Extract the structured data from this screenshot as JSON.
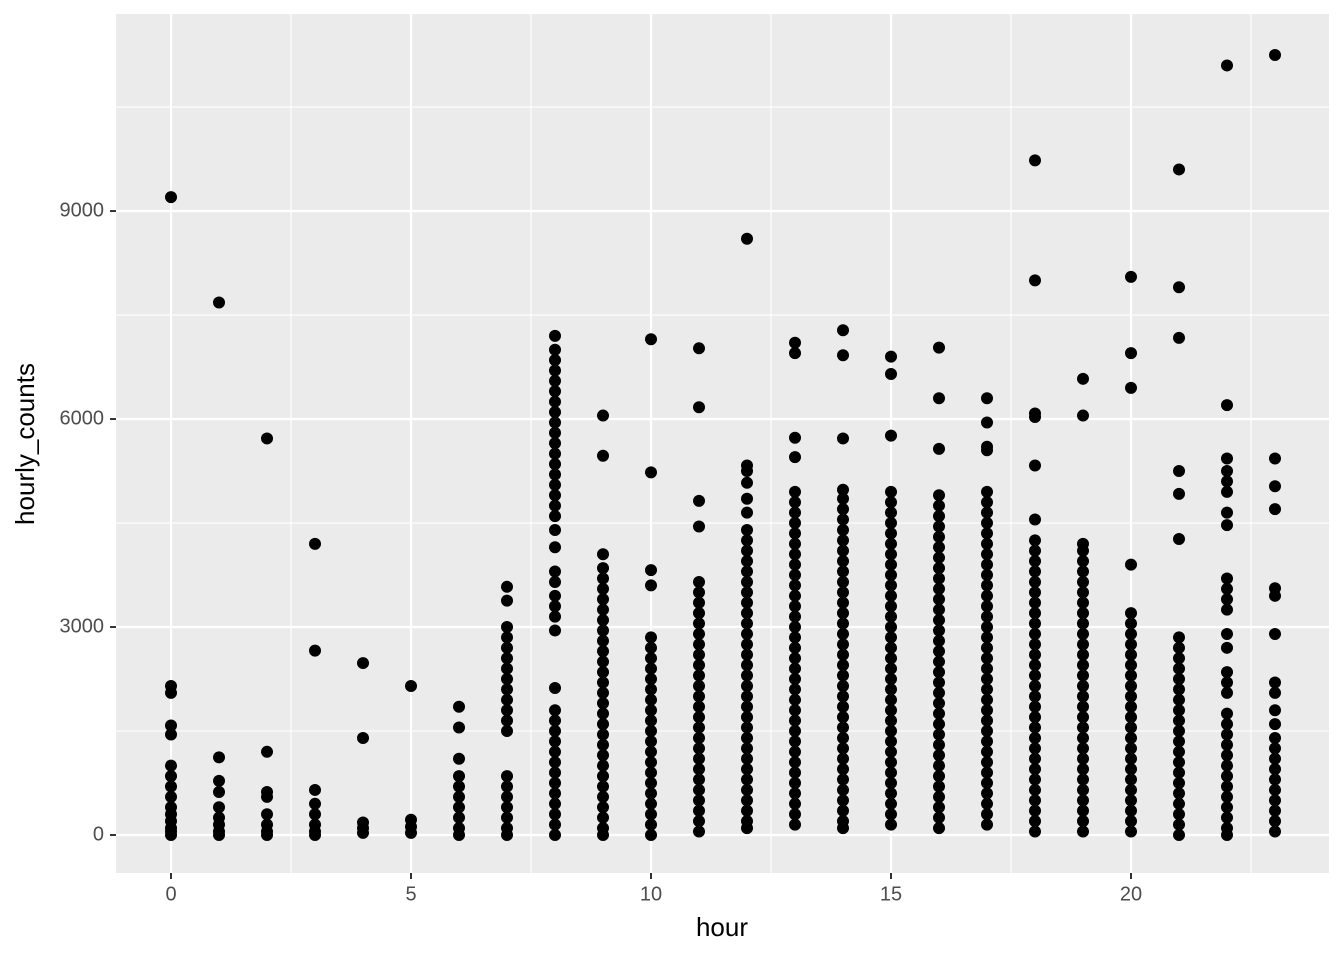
{
  "chart_data": {
    "type": "scatter",
    "x_label": "hour",
    "y_label": "hourly_counts",
    "color": "#000000",
    "background": "#ebebeb",
    "grid": true,
    "xlim": [
      -1.146,
      24.125
    ],
    "ylim": [
      -548,
      11842
    ],
    "xticks": [
      0,
      5,
      10,
      15,
      20
    ],
    "yticks": [
      0,
      3000,
      6000,
      9000
    ],
    "groups": [
      {
        "x": 0,
        "values": [
          9200,
          2150,
          2050,
          1580,
          1450,
          1000,
          850,
          700,
          550,
          400,
          300,
          200,
          100,
          50,
          0
        ]
      },
      {
        "x": 1,
        "values": [
          7680,
          1120,
          780,
          620,
          400,
          250,
          150,
          50,
          0
        ]
      },
      {
        "x": 2,
        "values": [
          5720,
          1200,
          620,
          550,
          300,
          150,
          50,
          0
        ]
      },
      {
        "x": 3,
        "values": [
          4200,
          2660,
          650,
          450,
          300,
          150,
          50,
          0
        ]
      },
      {
        "x": 4,
        "values": [
          2480,
          1400,
          180,
          100,
          30
        ]
      },
      {
        "x": 5,
        "values": [
          2150,
          220,
          120,
          30
        ]
      },
      {
        "x": 6,
        "values": [
          1850,
          1550,
          1100,
          850,
          700,
          550,
          400,
          250,
          100,
          0
        ]
      },
      {
        "x": 7,
        "values": [
          3580,
          3380,
          3000,
          2850,
          2700,
          2550,
          2400,
          2250,
          2100,
          1950,
          1800,
          1650,
          1500,
          850,
          700,
          550,
          400,
          250,
          100,
          0
        ]
      },
      {
        "x": 8,
        "values": [
          7200,
          7000,
          6850,
          6700,
          6550,
          6400,
          6250,
          6100,
          5950,
          5800,
          5650,
          5500,
          5350,
          5200,
          5050,
          4900,
          4750,
          4600,
          4400,
          4150,
          3800,
          3650,
          3450,
          3300,
          3150,
          2950,
          2120,
          1800,
          1650,
          1500,
          1350,
          1200,
          1050,
          900,
          750,
          600,
          450,
          300,
          150,
          0
        ]
      },
      {
        "x": 9,
        "values": [
          6050,
          5470,
          4050,
          3850,
          3700,
          3550,
          3400,
          3250,
          3100,
          2950,
          2800,
          2650,
          2500,
          2350,
          2200,
          2050,
          1900,
          1750,
          1600,
          1450,
          1300,
          1150,
          1000,
          850,
          700,
          550,
          400,
          250,
          100,
          0
        ]
      },
      {
        "x": 10,
        "values": [
          7150,
          5230,
          3820,
          3600,
          2850,
          2700,
          2550,
          2400,
          2250,
          2100,
          1950,
          1800,
          1650,
          1500,
          1350,
          1200,
          1050,
          900,
          750,
          600,
          450,
          300,
          150,
          0
        ]
      },
      {
        "x": 11,
        "values": [
          7020,
          6170,
          4820,
          4450,
          3650,
          3500,
          3350,
          3200,
          3050,
          2900,
          2750,
          2600,
          2450,
          2300,
          2150,
          2000,
          1850,
          1700,
          1550,
          1400,
          1250,
          1100,
          950,
          800,
          650,
          500,
          350,
          200,
          50
        ]
      },
      {
        "x": 12,
        "values": [
          8600,
          5330,
          5250,
          5080,
          4850,
          4650,
          4400,
          4250,
          4100,
          3950,
          3800,
          3650,
          3500,
          3350,
          3200,
          3050,
          2900,
          2750,
          2600,
          2450,
          2300,
          2150,
          2000,
          1850,
          1700,
          1550,
          1400,
          1250,
          1100,
          950,
          800,
          650,
          500,
          350,
          200,
          100
        ]
      },
      {
        "x": 13,
        "values": [
          7100,
          6950,
          5730,
          5450,
          4950,
          4800,
          4650,
          4500,
          4350,
          4200,
          4050,
          3900,
          3750,
          3600,
          3450,
          3300,
          3150,
          3000,
          2850,
          2700,
          2550,
          2400,
          2250,
          2100,
          1950,
          1800,
          1650,
          1500,
          1350,
          1200,
          1050,
          900,
          750,
          600,
          450,
          300,
          150
        ]
      },
      {
        "x": 14,
        "values": [
          7280,
          6920,
          5720,
          4980,
          4850,
          4700,
          4550,
          4400,
          4250,
          4100,
          3950,
          3800,
          3650,
          3500,
          3350,
          3200,
          3050,
          2900,
          2750,
          2600,
          2450,
          2300,
          2150,
          2000,
          1850,
          1700,
          1550,
          1400,
          1250,
          1100,
          950,
          800,
          650,
          500,
          350,
          200,
          100
        ]
      },
      {
        "x": 15,
        "values": [
          6900,
          6650,
          5760,
          4950,
          4800,
          4650,
          4500,
          4350,
          4200,
          4050,
          3900,
          3750,
          3600,
          3450,
          3300,
          3150,
          3000,
          2850,
          2700,
          2550,
          2400,
          2250,
          2100,
          1950,
          1800,
          1650,
          1500,
          1350,
          1200,
          1050,
          900,
          750,
          600,
          450,
          300,
          150
        ]
      },
      {
        "x": 16,
        "values": [
          7030,
          6300,
          5570,
          4900,
          4750,
          4600,
          4450,
          4300,
          4150,
          4000,
          3850,
          3700,
          3550,
          3400,
          3250,
          3100,
          2950,
          2800,
          2650,
          2500,
          2350,
          2200,
          2050,
          1900,
          1750,
          1600,
          1450,
          1300,
          1150,
          1000,
          850,
          700,
          550,
          400,
          250,
          100
        ]
      },
      {
        "x": 17,
        "values": [
          6300,
          5950,
          5600,
          5550,
          4950,
          4800,
          4650,
          4500,
          4350,
          4200,
          4050,
          3900,
          3750,
          3600,
          3450,
          3300,
          3150,
          3000,
          2850,
          2700,
          2550,
          2400,
          2250,
          2100,
          1950,
          1800,
          1650,
          1500,
          1350,
          1200,
          1050,
          900,
          750,
          600,
          450,
          300,
          150
        ]
      },
      {
        "x": 18,
        "values": [
          9730,
          8000,
          6080,
          6030,
          5330,
          4550,
          4250,
          4100,
          3950,
          3800,
          3650,
          3500,
          3350,
          3200,
          3050,
          2900,
          2750,
          2600,
          2450,
          2300,
          2150,
          2000,
          1850,
          1700,
          1550,
          1400,
          1250,
          1100,
          950,
          800,
          650,
          500,
          350,
          200,
          50
        ]
      },
      {
        "x": 19,
        "values": [
          6580,
          6050,
          4200,
          4100,
          3950,
          3800,
          3650,
          3500,
          3350,
          3200,
          3050,
          2900,
          2750,
          2600,
          2450,
          2300,
          2150,
          2000,
          1850,
          1700,
          1550,
          1400,
          1250,
          1100,
          950,
          800,
          650,
          500,
          350,
          200,
          50
        ]
      },
      {
        "x": 20,
        "values": [
          8050,
          6950,
          6450,
          3900,
          3200,
          3050,
          2900,
          2750,
          2600,
          2450,
          2300,
          2150,
          2000,
          1850,
          1700,
          1550,
          1400,
          1250,
          1100,
          950,
          800,
          650,
          500,
          350,
          200,
          50
        ]
      },
      {
        "x": 21,
        "values": [
          9600,
          7900,
          7170,
          5250,
          4920,
          4270,
          2850,
          2700,
          2550,
          2400,
          2250,
          2100,
          1950,
          1800,
          1650,
          1500,
          1350,
          1200,
          1050,
          900,
          750,
          600,
          450,
          300,
          150,
          0
        ]
      },
      {
        "x": 22,
        "values": [
          11100,
          6200,
          5430,
          5250,
          5100,
          4950,
          4650,
          4470,
          3700,
          3550,
          3400,
          3250,
          2900,
          2700,
          2350,
          2200,
          2050,
          1750,
          1600,
          1450,
          1300,
          1150,
          1000,
          850,
          700,
          550,
          400,
          250,
          100,
          0
        ]
      },
      {
        "x": 23,
        "values": [
          11250,
          5430,
          5030,
          4700,
          3560,
          3450,
          2900,
          2200,
          2050,
          1800,
          1600,
          1400,
          1250,
          1100,
          950,
          800,
          650,
          500,
          350,
          200,
          50
        ]
      }
    ]
  }
}
